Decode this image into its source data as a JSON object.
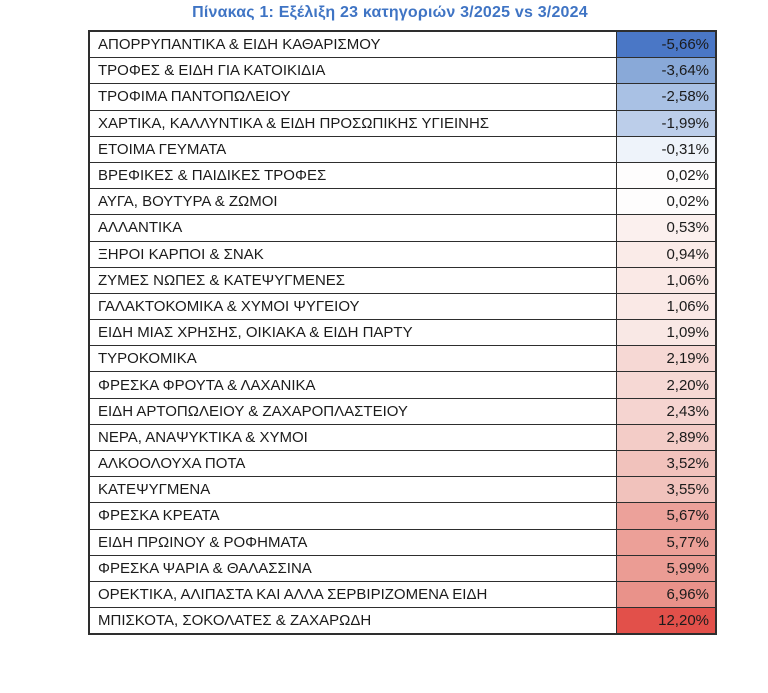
{
  "title": "Πίνακας 1: Εξέλιξη 23 κατηγοριών 3/2025 vs 3/2024",
  "colors": {
    "title_text": "#3F74C4",
    "table_border": "#2e2e2e",
    "cell_text": "#1b1b1b",
    "scale_negative_max": "#4A77C6",
    "scale_midpoint": "#FFFFFF",
    "scale_positive_max": "#E2504A"
  },
  "chart_data": {
    "type": "table",
    "title": "Πίνακας 1: Εξέλιξη 23 κατηγοριών 3/2025 vs 3/2024",
    "value_format": "percent, comma decimal separator",
    "color_scale": "blue (negative) → white (zero) → red (positive)",
    "rows": [
      {
        "category": "ΑΠΟΡΡΥΠΑΝΤΙΚΑ & ΕΙΔΗ ΚΑΘΑΡΙΣΜΟΥ",
        "value": -5.66,
        "display": "-5,66%",
        "cell_color": "#4A77C6"
      },
      {
        "category": "ΤΡΟΦΕΣ & ΕΙΔΗ ΓΙΑ ΚΑΤΟΙΚΙΔΙΑ",
        "value": -3.64,
        "display": "-3,64%",
        "cell_color": "#89A9D8"
      },
      {
        "category": "ΤΡΟΦΙΜΑ ΠΑΝΤΟΠΩΛΕΙΟΥ",
        "value": -2.58,
        "display": "-2,58%",
        "cell_color": "#A9C1E4"
      },
      {
        "category": "ΧΑΡΤΙΚΑ, ΚΑΛΛΥΝΤΙΚΑ & ΕΙΔΗ ΠΡΟΣΩΠΙΚΗΣ ΥΓΙΕΙΝΗΣ",
        "value": -1.99,
        "display": "-1,99%",
        "cell_color": "#BCCEEA"
      },
      {
        "category": "ΕΤΟΙΜΑ ΓΕΥΜΑΤΑ",
        "value": -0.31,
        "display": "-0,31%",
        "cell_color": "#EEF3FA"
      },
      {
        "category": "ΒΡΕΦΙΚΕΣ & ΠΑΙΔΙΚΕΣ ΤΡΟΦΕΣ",
        "value": 0.02,
        "display": "0,02%",
        "cell_color": "#FEFDFD"
      },
      {
        "category": "ΑΥΓΑ, ΒΟΥΤΥΡΑ & ΖΩΜΟΙ",
        "value": 0.02,
        "display": "0,02%",
        "cell_color": "#FEFDFD"
      },
      {
        "category": "ΑΛΛΑΝΤΙΚΑ",
        "value": 0.53,
        "display": "0,53%",
        "cell_color": "#FBF0EE"
      },
      {
        "category": "ΞΗΡΟΙ ΚΑΡΠΟΙ & ΣΝΑΚ",
        "value": 0.94,
        "display": "0,94%",
        "cell_color": "#FAEBE8"
      },
      {
        "category": "ΖΥΜΕΣ ΝΩΠΕΣ & ΚΑΤΕΨΥΓΜΕΝΕΣ",
        "value": 1.06,
        "display": "1,06%",
        "cell_color": "#FAE9E6"
      },
      {
        "category": "ΓΑΛΑΚΤΟΚΟΜΙΚΑ & ΧΥΜΟΙ ΨΥΓΕΙΟΥ",
        "value": 1.06,
        "display": "1,06%",
        "cell_color": "#FAE9E6"
      },
      {
        "category": "ΕΙΔΗ ΜΙΑΣ ΧΡΗΣΗΣ, ΟΙΚΙΑΚΑ & ΕΙΔΗ ΠΑΡΤΥ",
        "value": 1.09,
        "display": "1,09%",
        "cell_color": "#F9E8E5"
      },
      {
        "category": "ΤΥΡΟΚΟΜΙΚΑ",
        "value": 2.19,
        "display": "2,19%",
        "cell_color": "#F6D8D4"
      },
      {
        "category": "ΦΡΕΣΚΑ ΦΡΟΥΤΑ & ΛΑΧΑΝΙΚΑ",
        "value": 2.2,
        "display": "2,20%",
        "cell_color": "#F6D8D4"
      },
      {
        "category": "ΕΙΔΗ ΑΡΤΟΠΩΛΕΙΟΥ & ΖΑΧΑΡΟΠΛΑΣΤΕΙΟΥ",
        "value": 2.43,
        "display": "2,43%",
        "cell_color": "#F5D4D0"
      },
      {
        "category": "ΝΕΡΑ, ΑΝΑΨΥΚΤΙΚΑ & ΧΥΜΟΙ",
        "value": 2.89,
        "display": "2,89%",
        "cell_color": "#F3CCC7"
      },
      {
        "category": "ΑΛΚΟΟΛΟΥΧΑ ΠΟΤΑ",
        "value": 3.52,
        "display": "3,52%",
        "cell_color": "#F1C2BC"
      },
      {
        "category": "ΚΑΤΕΨΥΓΜΕΝΑ",
        "value": 3.55,
        "display": "3,55%",
        "cell_color": "#F1C2BC"
      },
      {
        "category": "ΦΡΕΣΚΑ ΚΡΕΑΤΑ",
        "value": 5.67,
        "display": "5,67%",
        "cell_color": "#ECA19A"
      },
      {
        "category": "ΕΙΔΗ ΠΡΩΙΝΟΥ & ΡΟΦΗΜΑΤΑ",
        "value": 5.77,
        "display": "5,77%",
        "cell_color": "#ECA098"
      },
      {
        "category": "ΦΡΕΣΚΑ ΨΑΡΙΑ & ΘΑΛΑΣΣΙΝΑ",
        "value": 5.99,
        "display": "5,99%",
        "cell_color": "#EB9C94"
      },
      {
        "category": "ΟΡΕΚΤΙΚΑ, ΑΛΙΠΑΣΤΑ ΚΑΙ ΑΛΛΑ ΣΕΡΒΙΡΙΖΟΜΕΝΑ ΕΙΔΗ",
        "value": 6.96,
        "display": "6,96%",
        "cell_color": "#E9928A"
      },
      {
        "category": "ΜΠΙΣΚΟΤΑ, ΣΟΚΟΛΑΤΕΣ & ΖΑΧΑΡΩΔΗ",
        "value": 12.2,
        "display": "12,20%",
        "cell_color": "#E2504A"
      }
    ]
  }
}
